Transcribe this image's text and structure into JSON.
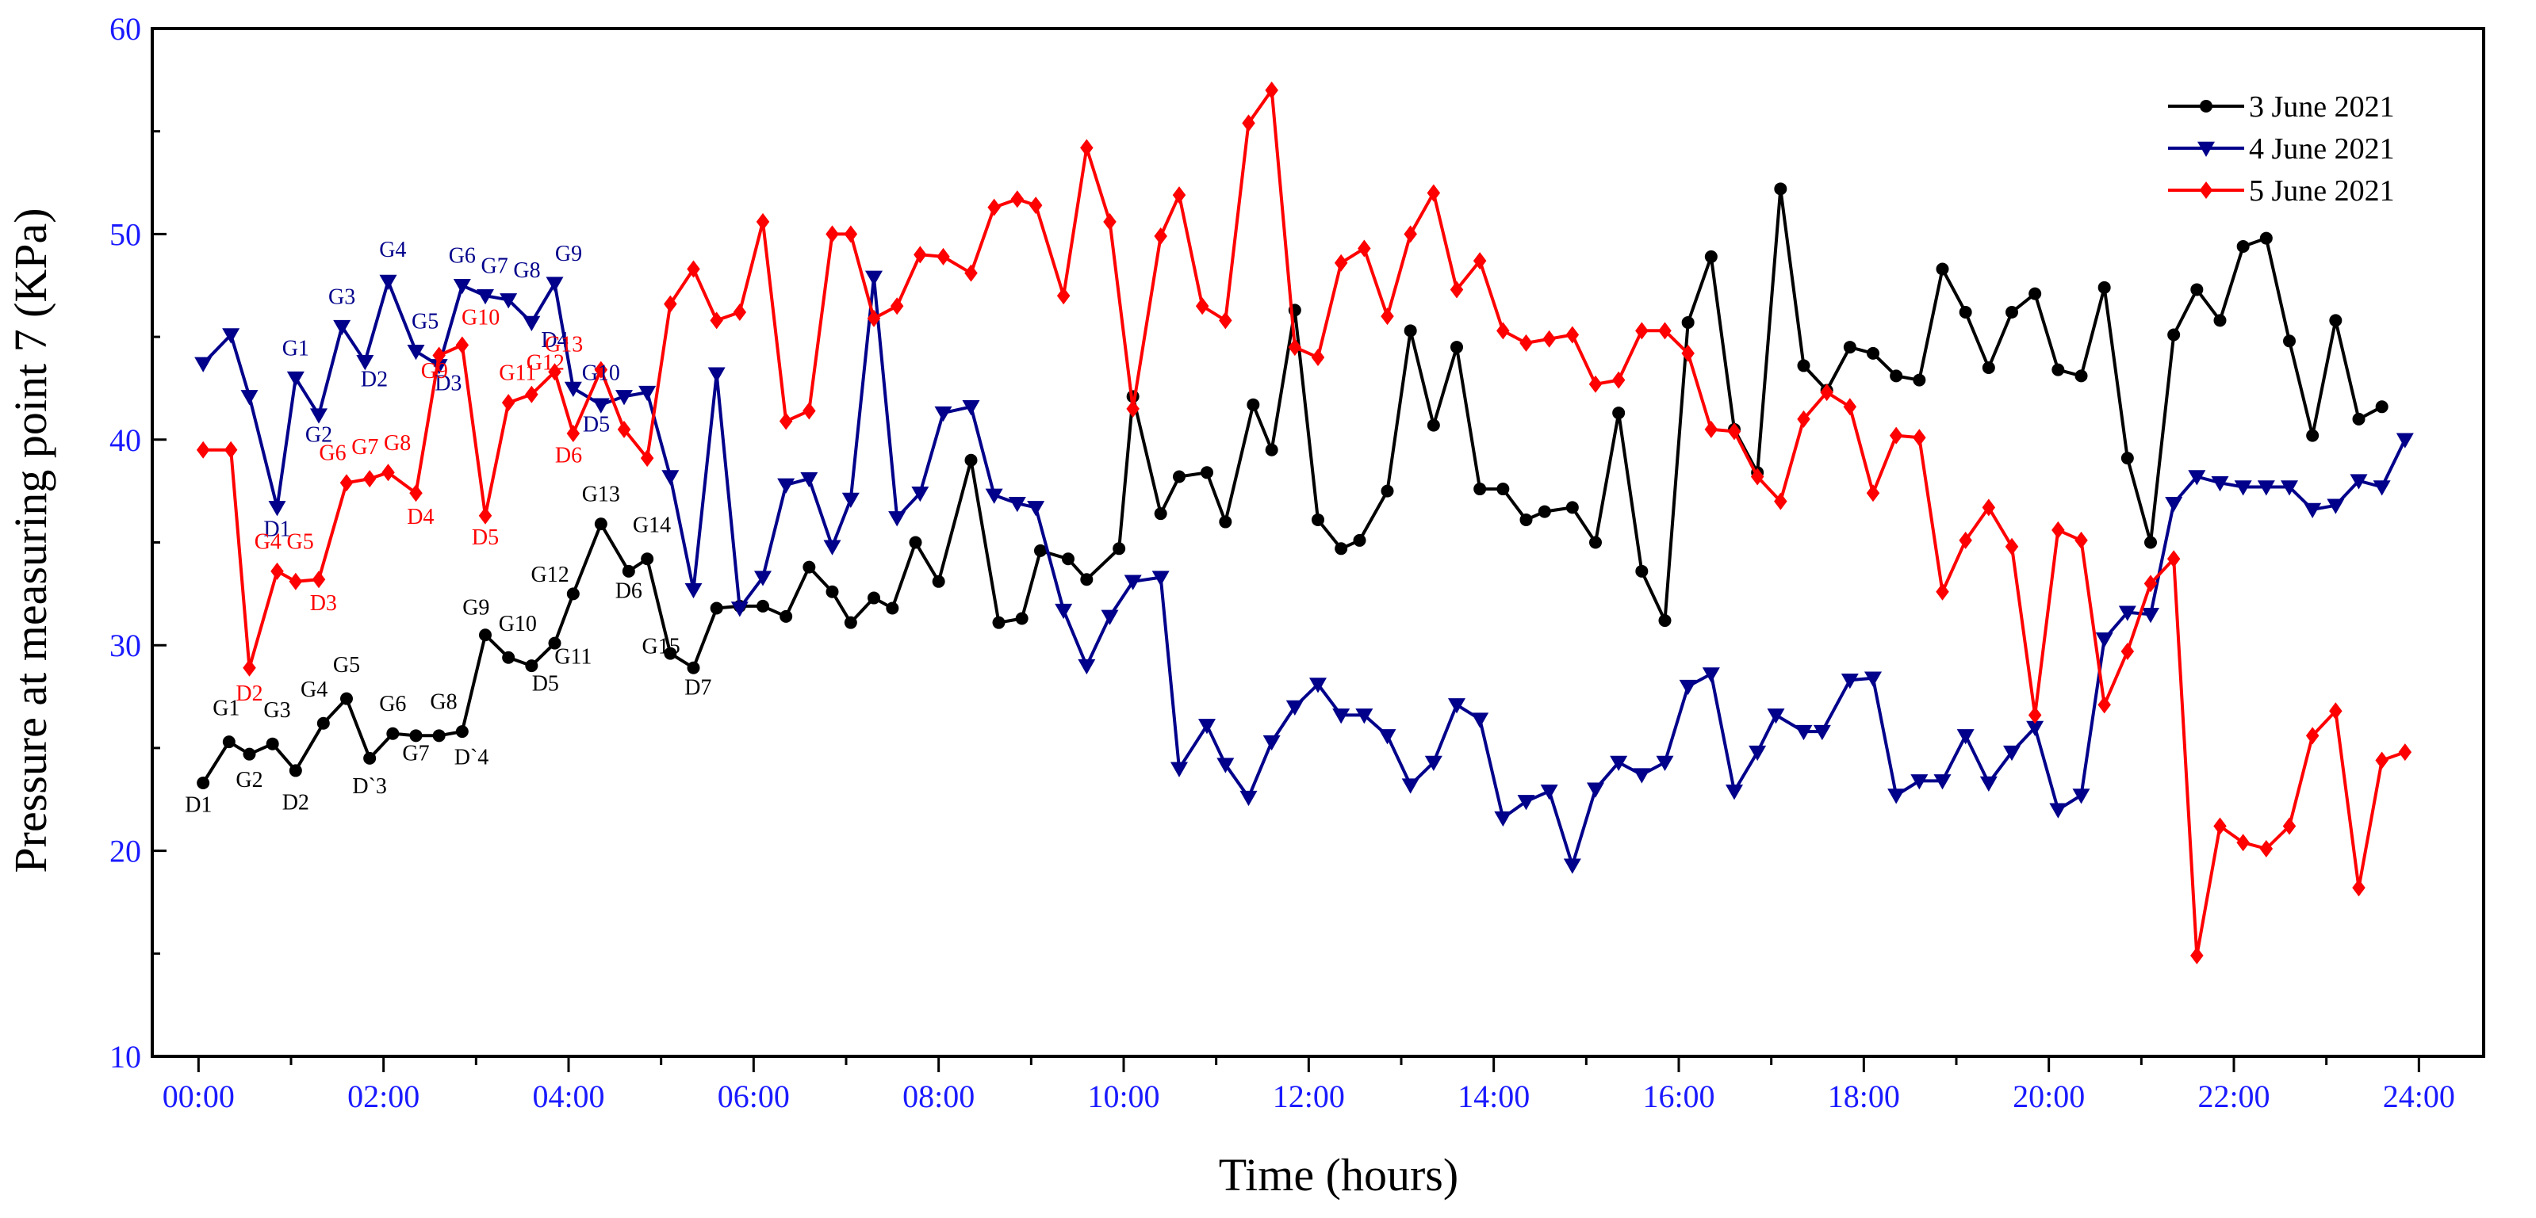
{
  "chart_data": {
    "type": "line",
    "xlabel": "Time (hours)",
    "ylabel": "Pressure at measuring point 7 (KPa)",
    "xlim": [
      -0.5,
      24.7
    ],
    "ylim": [
      10,
      60
    ],
    "yticks": [
      "10",
      "20",
      "30",
      "40",
      "50",
      "60"
    ],
    "xticks": [
      "00:00",
      "02:00",
      "04:00",
      "06:00",
      "08:00",
      "10:00",
      "12:00",
      "14:00",
      "16:00",
      "18:00",
      "20:00",
      "22:00",
      "24:00"
    ],
    "tick_color": "#1a1aff",
    "legend_position": "top-right",
    "series": [
      {
        "name": "3 June 2021",
        "color": "#000000",
        "marker": "circle",
        "x": [
          0.05,
          0.33,
          0.55,
          0.8,
          1.05,
          1.35,
          1.6,
          1.85,
          2.1,
          2.35,
          2.6,
          2.85,
          3.1,
          3.35,
          3.6,
          3.85,
          4.05,
          4.35,
          4.65,
          4.85,
          5.1,
          5.35,
          5.6,
          5.85,
          6.1,
          6.35,
          6.6,
          6.85,
          7.05,
          7.3,
          7.5,
          7.75,
          8.0,
          8.35,
          8.65,
          8.9,
          9.1,
          9.4,
          9.6,
          9.95,
          10.1,
          10.4,
          10.6,
          10.9,
          11.1,
          11.4,
          11.6,
          11.85,
          12.1,
          12.35,
          12.55,
          12.85,
          13.1,
          13.35,
          13.6,
          13.85,
          14.1,
          14.35,
          14.55,
          14.85,
          15.1,
          15.35,
          15.6,
          15.85,
          16.1,
          16.35,
          16.6,
          16.85,
          17.1,
          17.35,
          17.6,
          17.85,
          18.1,
          18.35,
          18.6,
          18.85,
          19.1,
          19.35,
          19.6,
          19.85,
          20.1,
          20.35,
          20.6,
          20.85,
          21.1,
          21.35,
          21.6,
          21.85,
          22.1,
          22.35,
          22.6,
          22.85,
          23.1,
          23.35,
          23.6
        ],
        "y": [
          23.3,
          25.3,
          24.7,
          25.2,
          23.9,
          26.2,
          27.4,
          24.5,
          25.7,
          25.6,
          25.6,
          25.8,
          30.5,
          29.4,
          29.0,
          30.1,
          32.5,
          35.9,
          33.6,
          34.2,
          29.6,
          28.9,
          31.8,
          31.9,
          31.9,
          31.4,
          33.8,
          32.6,
          31.1,
          32.3,
          31.8,
          35.0,
          33.1,
          39.0,
          31.1,
          31.3,
          34.6,
          34.2,
          33.2,
          34.7,
          42.1,
          36.4,
          38.2,
          38.4,
          36.0,
          41.7,
          39.5,
          46.3,
          36.1,
          34.7,
          35.1,
          37.5,
          45.3,
          40.7,
          44.5,
          37.6,
          37.6,
          36.1,
          36.5,
          36.7,
          35.0,
          41.3,
          33.6,
          31.2,
          45.7,
          48.9,
          40.5,
          38.4,
          52.2,
          43.6,
          42.4,
          44.5,
          44.2,
          43.1,
          42.9,
          48.3,
          46.2,
          43.5,
          46.2,
          47.1,
          43.4,
          43.1,
          47.4,
          39.1,
          35.0,
          45.1,
          47.3,
          45.8,
          49.4,
          49.8,
          44.8,
          40.2,
          45.8,
          41.0,
          41.6
        ]
      },
      {
        "name": "4 June 2021",
        "color": "#00008b",
        "marker": "triangle-down",
        "x": [
          0.05,
          0.35,
          0.55,
          0.85,
          1.05,
          1.3,
          1.55,
          1.8,
          2.05,
          2.35,
          2.6,
          2.85,
          3.1,
          3.35,
          3.6,
          3.85,
          4.05,
          4.35,
          4.6,
          4.85,
          5.1,
          5.35,
          5.6,
          5.85,
          6.1,
          6.35,
          6.6,
          6.85,
          7.05,
          7.3,
          7.55,
          7.8,
          8.05,
          8.35,
          8.6,
          8.85,
          9.05,
          9.35,
          9.6,
          9.85,
          10.1,
          10.4,
          10.6,
          10.9,
          11.1,
          11.35,
          11.6,
          11.85,
          12.1,
          12.35,
          12.6,
          12.85,
          13.1,
          13.35,
          13.6,
          13.85,
          14.1,
          14.35,
          14.6,
          14.85,
          15.1,
          15.35,
          15.6,
          15.85,
          16.1,
          16.35,
          16.6,
          16.85,
          17.05,
          17.35,
          17.55,
          17.85,
          18.1,
          18.35,
          18.6,
          18.85,
          19.1,
          19.35,
          19.6,
          19.85,
          20.1,
          20.35,
          20.6,
          20.85,
          21.1,
          21.35,
          21.6,
          21.85,
          22.1,
          22.35,
          22.6,
          22.85,
          23.1,
          23.35,
          23.6,
          23.85
        ],
        "y": [
          43.7,
          45.1,
          42.1,
          36.7,
          43.0,
          41.2,
          45.5,
          43.8,
          47.7,
          44.3,
          43.6,
          47.5,
          47.0,
          46.8,
          45.7,
          47.6,
          42.5,
          41.7,
          42.1,
          42.3,
          38.2,
          32.7,
          43.2,
          31.8,
          33.3,
          37.8,
          38.1,
          34.8,
          37.1,
          47.9,
          36.2,
          37.4,
          41.3,
          41.6,
          37.3,
          36.9,
          36.7,
          31.7,
          29.0,
          31.4,
          33.1,
          33.3,
          24.0,
          26.1,
          24.2,
          22.6,
          25.3,
          27.0,
          28.1,
          26.6,
          26.6,
          25.6,
          23.2,
          24.3,
          27.1,
          26.4,
          21.6,
          22.4,
          22.9,
          19.3,
          23.0,
          24.3,
          23.7,
          24.3,
          28.0,
          28.6,
          22.9,
          24.8,
          26.6,
          25.8,
          25.8,
          28.3,
          28.4,
          22.7,
          23.4,
          23.4,
          25.6,
          23.3,
          24.8,
          26.0,
          22.0,
          22.7,
          30.3,
          31.6,
          31.5,
          36.9,
          38.2,
          37.9,
          37.7,
          37.7,
          37.7,
          36.6,
          36.8,
          38.0,
          37.7,
          40.0
        ]
      },
      {
        "name": "5 June 2021",
        "color": "#ff0000",
        "marker": "diamond",
        "x": [
          0.05,
          0.35,
          0.55,
          0.85,
          1.05,
          1.3,
          1.6,
          1.85,
          2.05,
          2.35,
          2.6,
          2.85,
          3.1,
          3.35,
          3.6,
          3.85,
          4.05,
          4.35,
          4.6,
          4.85,
          5.1,
          5.35,
          5.6,
          5.85,
          6.1,
          6.35,
          6.6,
          6.85,
          7.05,
          7.3,
          7.55,
          7.8,
          8.05,
          8.35,
          8.6,
          8.85,
          9.05,
          9.35,
          9.6,
          9.85,
          10.1,
          10.4,
          10.6,
          10.85,
          11.1,
          11.35,
          11.6,
          11.85,
          12.1,
          12.35,
          12.6,
          12.85,
          13.1,
          13.35,
          13.6,
          13.85,
          14.1,
          14.35,
          14.6,
          14.85,
          15.1,
          15.35,
          15.6,
          15.85,
          16.1,
          16.35,
          16.6,
          16.85,
          17.1,
          17.35,
          17.6,
          17.85,
          18.1,
          18.35,
          18.6,
          18.85,
          19.1,
          19.35,
          19.6,
          19.85,
          20.1,
          20.35,
          20.6,
          20.85,
          21.1,
          21.35,
          21.6,
          21.85,
          22.1,
          22.35,
          22.6,
          22.85,
          23.1,
          23.35,
          23.6,
          23.85
        ],
        "y": [
          39.5,
          39.5,
          28.9,
          33.6,
          33.1,
          33.2,
          37.9,
          38.1,
          38.4,
          37.4,
          44.1,
          44.6,
          36.3,
          41.8,
          42.2,
          43.3,
          40.3,
          43.4,
          40.5,
          39.1,
          46.6,
          48.3,
          45.8,
          46.2,
          50.6,
          40.9,
          41.4,
          50.0,
          50.0,
          45.9,
          46.5,
          49.0,
          48.9,
          48.1,
          51.3,
          51.7,
          51.4,
          47.0,
          54.2,
          50.6,
          41.5,
          49.9,
          51.9,
          46.5,
          45.8,
          55.4,
          57.0,
          44.5,
          44.0,
          48.6,
          49.3,
          46.0,
          50.0,
          52.0,
          47.3,
          48.7,
          45.3,
          44.7,
          44.9,
          45.1,
          42.7,
          42.9,
          45.3,
          45.3,
          44.2,
          40.5,
          40.4,
          38.2,
          37.0,
          41.0,
          42.3,
          41.6,
          37.4,
          40.2,
          40.1,
          32.6,
          35.1,
          36.7,
          34.8,
          26.6,
          35.6,
          35.1,
          27.1,
          29.7,
          33.0,
          34.2,
          14.9,
          21.2,
          20.4,
          20.1,
          21.2,
          25.6,
          26.8,
          18.2,
          24.4,
          24.8
        ]
      }
    ],
    "annotations": [
      {
        "text": "D1",
        "series": 0,
        "x": 0.0,
        "y": 21.9
      },
      {
        "text": "G1",
        "series": 0,
        "x": 0.3,
        "y": 26.6
      },
      {
        "text": "G2",
        "series": 0,
        "x": 0.55,
        "y": 23.1
      },
      {
        "text": "G3",
        "series": 0,
        "x": 0.85,
        "y": 26.5
      },
      {
        "text": "D2",
        "series": 0,
        "x": 1.05,
        "y": 22.0
      },
      {
        "text": "G4",
        "series": 0,
        "x": 1.25,
        "y": 27.5
      },
      {
        "text": "G5",
        "series": 0,
        "x": 1.6,
        "y": 28.7
      },
      {
        "text": "D`3",
        "series": 0,
        "x": 1.85,
        "y": 22.8
      },
      {
        "text": "G6",
        "series": 0,
        "x": 2.1,
        "y": 26.8
      },
      {
        "text": "G7",
        "series": 0,
        "x": 2.35,
        "y": 24.4
      },
      {
        "text": "G8",
        "series": 0,
        "x": 2.65,
        "y": 26.9
      },
      {
        "text": "D`4",
        "series": 0,
        "x": 2.95,
        "y": 24.2
      },
      {
        "text": "G9",
        "series": 0,
        "x": 3.0,
        "y": 31.5
      },
      {
        "text": "G10",
        "series": 0,
        "x": 3.45,
        "y": 30.7
      },
      {
        "text": "G11",
        "series": 0,
        "x": 4.05,
        "y": 29.1
      },
      {
        "text": "D5",
        "series": 0,
        "x": 3.75,
        "y": 27.8
      },
      {
        "text": "G12",
        "series": 0,
        "x": 3.8,
        "y": 33.1
      },
      {
        "text": "G13",
        "series": 0,
        "x": 4.35,
        "y": 37.0
      },
      {
        "text": "G14",
        "series": 0,
        "x": 4.9,
        "y": 35.5
      },
      {
        "text": "D6",
        "series": 0,
        "x": 4.65,
        "y": 32.3
      },
      {
        "text": "G15",
        "series": 0,
        "x": 5.0,
        "y": 29.6
      },
      {
        "text": "D7",
        "series": 0,
        "x": 5.4,
        "y": 27.6
      },
      {
        "text": "D1",
        "series": 1,
        "x": 0.85,
        "y": 35.3
      },
      {
        "text": "G1",
        "series": 1,
        "x": 1.05,
        "y": 44.1
      },
      {
        "text": "G2",
        "series": 1,
        "x": 1.3,
        "y": 39.9
      },
      {
        "text": "G3",
        "series": 1,
        "x": 1.55,
        "y": 46.6
      },
      {
        "text": "D2",
        "series": 1,
        "x": 1.9,
        "y": 42.6
      },
      {
        "text": "G4",
        "series": 1,
        "x": 2.1,
        "y": 48.9
      },
      {
        "text": "G5",
        "series": 1,
        "x": 2.45,
        "y": 45.4
      },
      {
        "text": "D3",
        "series": 1,
        "x": 2.7,
        "y": 42.4
      },
      {
        "text": "G6",
        "series": 1,
        "x": 2.85,
        "y": 48.6
      },
      {
        "text": "G7",
        "series": 1,
        "x": 3.2,
        "y": 48.1
      },
      {
        "text": "G8",
        "series": 1,
        "x": 3.55,
        "y": 47.9
      },
      {
        "text": "G9",
        "series": 1,
        "x": 4.0,
        "y": 48.7
      },
      {
        "text": "D4",
        "series": 1,
        "x": 3.85,
        "y": 44.5
      },
      {
        "text": "G10",
        "series": 1,
        "x": 4.35,
        "y": 42.9
      },
      {
        "text": "D5",
        "series": 1,
        "x": 4.3,
        "y": 40.4
      },
      {
        "text": "D2",
        "series": 2,
        "x": 0.55,
        "y": 27.3
      },
      {
        "text": "G4",
        "series": 2,
        "x": 0.75,
        "y": 34.7
      },
      {
        "text": "G5",
        "series": 2,
        "x": 1.1,
        "y": 34.7
      },
      {
        "text": "D3",
        "series": 2,
        "x": 1.35,
        "y": 31.7
      },
      {
        "text": "G6",
        "series": 2,
        "x": 1.45,
        "y": 39.0
      },
      {
        "text": "G7",
        "series": 2,
        "x": 1.8,
        "y": 39.3
      },
      {
        "text": "G8",
        "series": 2,
        "x": 2.15,
        "y": 39.5
      },
      {
        "text": "D4",
        "series": 2,
        "x": 2.4,
        "y": 35.9
      },
      {
        "text": "G9",
        "series": 2,
        "x": 2.55,
        "y": 43.0
      },
      {
        "text": "G10",
        "series": 2,
        "x": 3.05,
        "y": 45.6
      },
      {
        "text": "D5",
        "series": 2,
        "x": 3.1,
        "y": 34.9
      },
      {
        "text": "G11",
        "series": 2,
        "x": 3.45,
        "y": 42.9
      },
      {
        "text": "G12",
        "series": 2,
        "x": 3.75,
        "y": 43.4
      },
      {
        "text": "G13",
        "series": 2,
        "x": 3.95,
        "y": 44.3
      },
      {
        "text": "D6",
        "series": 2,
        "x": 4.0,
        "y": 38.9
      }
    ]
  }
}
